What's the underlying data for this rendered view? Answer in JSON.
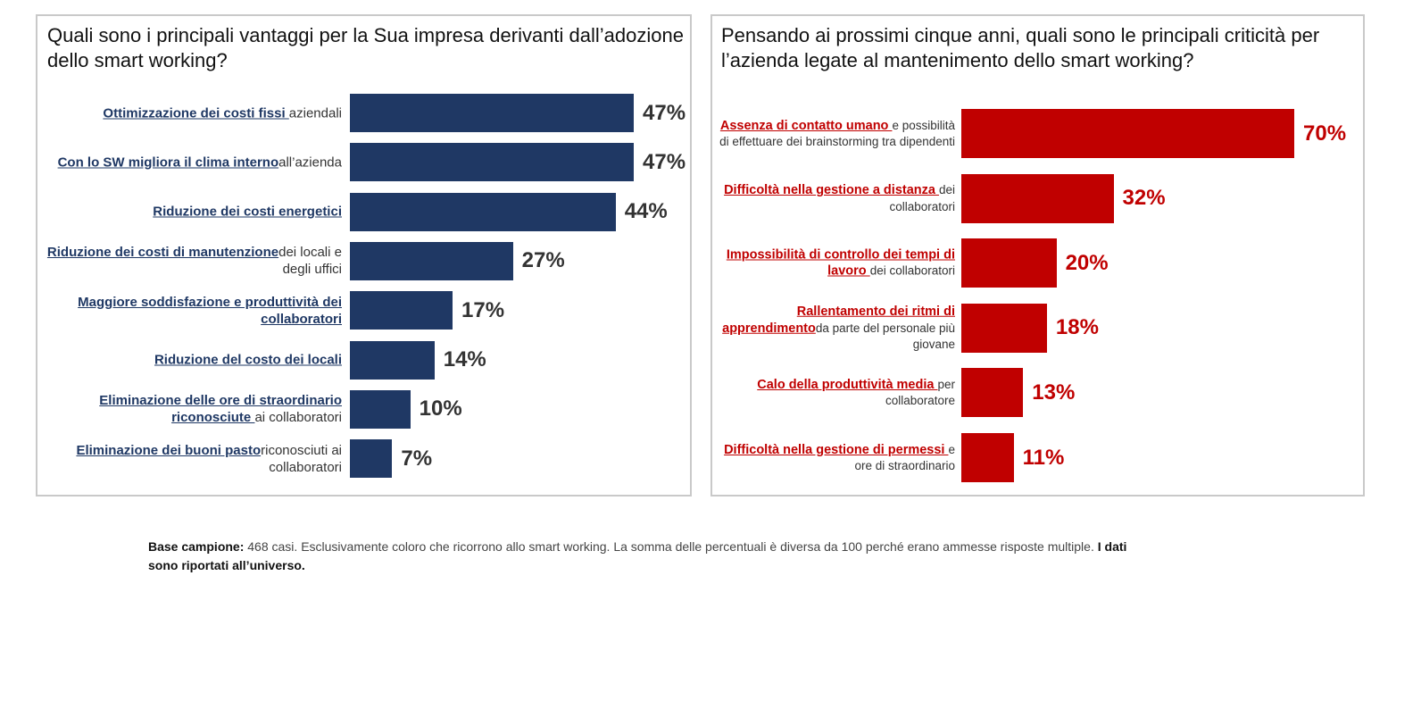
{
  "colors": {
    "left_bar": "#1f3864",
    "right_bar": "#c00000"
  },
  "chart_data": [
    {
      "type": "bar",
      "orientation": "horizontal",
      "title": "Quali sono i principali vantaggi per la Sua impresa derivanti dall’adozione dello smart working?",
      "value_max": 47,
      "categories": [
        {
          "highlight": "Ottimizzazione dei costi fissi ",
          "rest": "aziendali"
        },
        {
          "highlight": "Con lo SW migliora il clima interno",
          "rest": "all’azienda"
        },
        {
          "highlight": "Riduzione dei costi energetici",
          "rest": ""
        },
        {
          "highlight": "Riduzione dei costi di manutenzione",
          "rest": "dei locali e degli uffici"
        },
        {
          "highlight": "Maggiore soddisfazione e produttività dei collaboratori",
          "rest": ""
        },
        {
          "highlight": "Riduzione del costo dei locali",
          "rest": ""
        },
        {
          "highlight": "Eliminazione delle ore di straordinario riconosciute ",
          "rest": "ai collaboratori"
        },
        {
          "highlight": "Eliminazione dei buoni pasto",
          "rest": "riconosciuti ai collaboratori"
        }
      ],
      "values": [
        47,
        47,
        44,
        27,
        17,
        14,
        10,
        7
      ],
      "value_labels": [
        "47%",
        "47%",
        "44%",
        "27%",
        "17%",
        "14%",
        "10%",
        "7%"
      ]
    },
    {
      "type": "bar",
      "orientation": "horizontal",
      "title": "Pensando ai prossimi cinque anni, quali sono le principali criticità per l’azienda legate al mantenimento dello smart working?",
      "value_max": 70,
      "categories": [
        {
          "highlight": "Assenza di contatto umano ",
          "rest": "e possibilità di effettuare dei brainstorming tra dipendenti"
        },
        {
          "highlight": "Difficoltà nella gestione a distanza ",
          "rest": "dei collaboratori"
        },
        {
          "highlight": "Impossibilità di controllo dei tempi di lavoro ",
          "rest": "dei collaboratori"
        },
        {
          "highlight": "Rallentamento dei ritmi di apprendimento",
          "rest": "da parte del personale più giovane"
        },
        {
          "highlight": "Calo della produttività media ",
          "rest": "per collaboratore"
        },
        {
          "highlight": "Difficoltà nella gestione di permessi ",
          "rest": "e ore di straordinario"
        }
      ],
      "values": [
        70,
        32,
        20,
        18,
        13,
        11
      ],
      "value_labels": [
        "70%",
        "32%",
        "20%",
        "18%",
        "13%",
        "11%"
      ]
    }
  ],
  "footnote": {
    "label": "Base campione:",
    "text": " 468 casi. Esclusivamente coloro che ricorrono allo smart working. La somma delle percentuali è diversa da 100 perché erano ammesse risposte multiple. ",
    "bold_end": "I dati sono riportati all’universo."
  }
}
